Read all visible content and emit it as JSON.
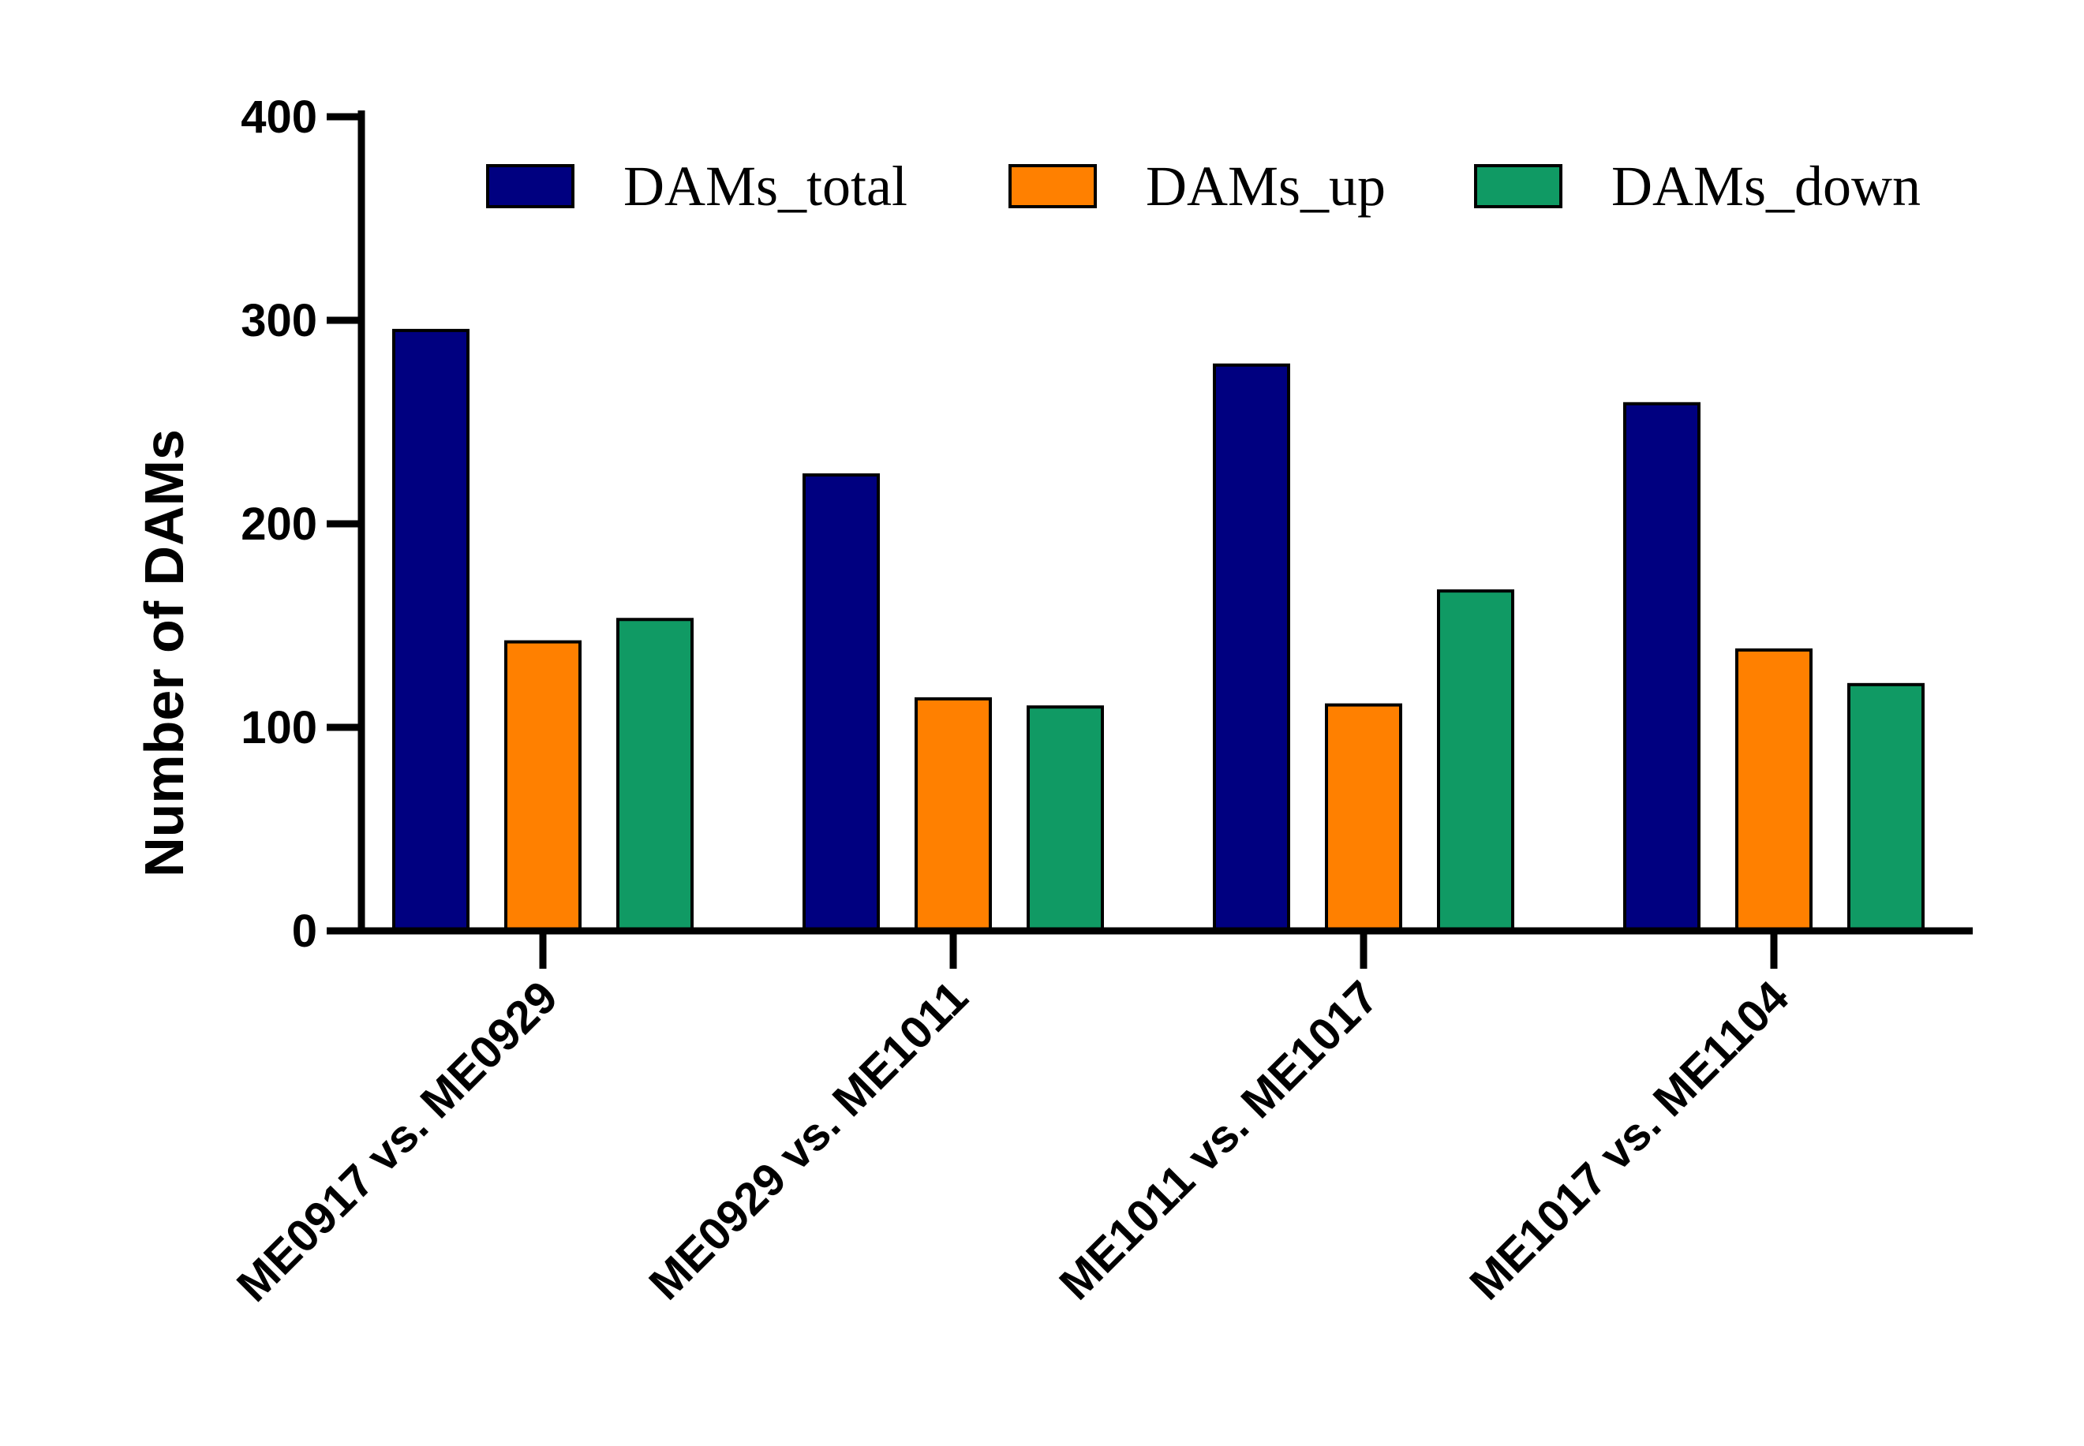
{
  "chart_data": {
    "type": "bar",
    "title": "",
    "xlabel": "",
    "ylabel": "Number of DAMs",
    "ylim": [
      0,
      400
    ],
    "yticks": [
      0,
      100,
      200,
      300,
      400
    ],
    "grid": false,
    "legend_position": "top-right",
    "categories": [
      "ME0917 vs. ME0929",
      "ME0929 vs. ME1011",
      "ME1011 vs. ME1017",
      "ME1017 vs. ME1104"
    ],
    "series": [
      {
        "name": "DAMs_total",
        "color": "#000080",
        "values": [
          295,
          224,
          278,
          259
        ]
      },
      {
        "name": "DAMs_up",
        "color": "#FF8000",
        "values": [
          142,
          114,
          111,
          138
        ]
      },
      {
        "name": "DAMs_down",
        "color": "#109A64",
        "values": [
          153,
          110,
          167,
          121
        ]
      }
    ]
  }
}
